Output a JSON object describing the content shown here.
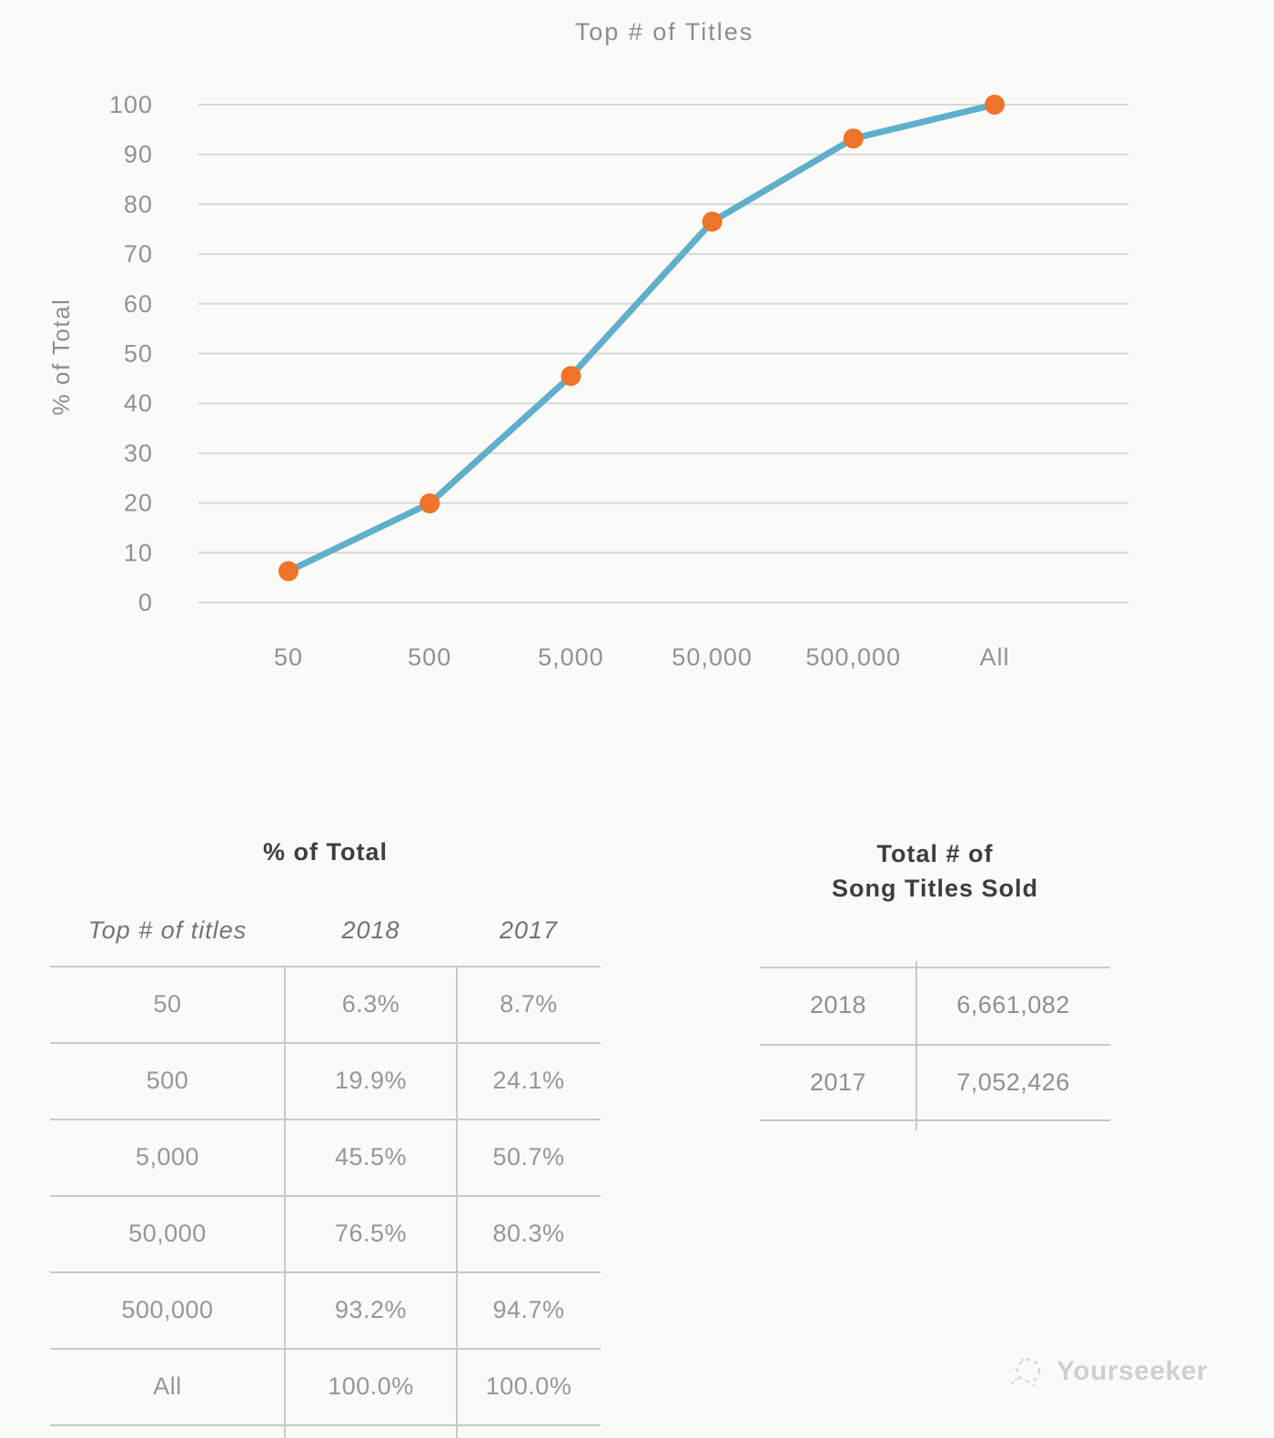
{
  "page": {
    "background": "#fafaf8"
  },
  "chart_data": {
    "type": "line",
    "title": "Top # of Titles",
    "xlabel": "",
    "ylabel": "% of Total",
    "categories": [
      "50",
      "500",
      "5,000",
      "50,000",
      "500,000",
      "All"
    ],
    "series": [
      {
        "name": "2018",
        "values": [
          6.3,
          19.9,
          45.5,
          76.5,
          93.2,
          100.0
        ]
      }
    ],
    "ylim": [
      0,
      100
    ],
    "ytick_step": 10,
    "grid": true,
    "legend": "none",
    "line_color": "#5fafcb",
    "marker_color": "#ed7428",
    "gridline_color": "#d8d8d8",
    "tick_label_color": "#929292",
    "axis_title_color": "#8d8d8d"
  },
  "tables": {
    "pct_of_total": {
      "title": "% of Total",
      "columns": [
        "Top # of titles",
        "2018",
        "2017"
      ],
      "rows": [
        {
          "label": "50",
          "y2018": "6.3%",
          "y2017": "8.7%"
        },
        {
          "label": "500",
          "y2018": "19.9%",
          "y2017": "24.1%"
        },
        {
          "label": "5,000",
          "y2018": "45.5%",
          "y2017": "50.7%"
        },
        {
          "label": "50,000",
          "y2018": "76.5%",
          "y2017": "80.3%"
        },
        {
          "label": "500,000",
          "y2018": "93.2%",
          "y2017": "94.7%"
        },
        {
          "label": "All",
          "y2018": "100.0%",
          "y2017": "100.0%"
        }
      ]
    },
    "totals": {
      "title": "Total # of\nSong Titles Sold",
      "rows": [
        {
          "label": "2018",
          "value": "6,661,082"
        },
        {
          "label": "2017",
          "value": "7,052,426"
        }
      ]
    }
  },
  "watermark": {
    "text": "Yourseeker",
    "icon": "sketch-circle-icon"
  }
}
